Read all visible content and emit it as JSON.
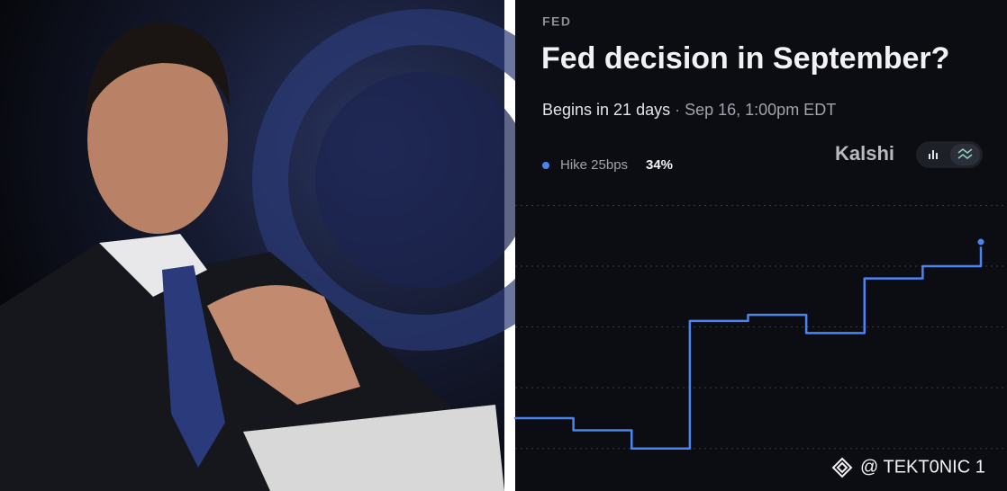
{
  "chart_data": {
    "type": "step",
    "kicker": "FED",
    "title": "Fed decision in September?",
    "subtitle": "Begins in 21 days",
    "date": "Sep 16, 1:00pm EDT",
    "source": "Kalshi",
    "watermark": "@ TEKT0NIC 1",
    "current_label": "34%",
    "series": [
      {
        "name": "Hike 25bps",
        "color": "#4b84f0",
        "values": [
          5,
          3,
          0,
          21,
          22,
          19,
          28,
          30,
          34
        ]
      }
    ],
    "ylim": [
      -7,
      42
    ],
    "gridlines": [
      0,
      10,
      20,
      30,
      40
    ],
    "grid": true
  }
}
